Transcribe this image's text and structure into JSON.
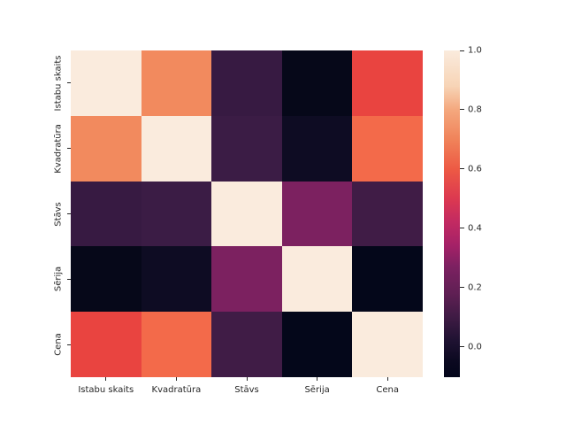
{
  "figure": {
    "background": "#ffffff",
    "text_color": "#262626"
  },
  "chart_data": {
    "type": "heatmap",
    "title": "",
    "xlabel": "",
    "ylabel": "",
    "grid": false,
    "legend_position": "right-colorbar",
    "colormap_name": "rocket",
    "categories": [
      "Istabu skaits",
      "Kvadratūra",
      "Stāvs",
      "Sērija",
      "Cena"
    ],
    "matrix": [
      [
        1.0,
        0.72,
        0.07,
        -0.08,
        0.55
      ],
      [
        0.72,
        1.0,
        0.09,
        -0.04,
        0.64
      ],
      [
        0.07,
        0.09,
        1.0,
        0.27,
        0.1
      ],
      [
        -0.08,
        -0.04,
        0.27,
        1.0,
        -0.1
      ],
      [
        0.55,
        0.64,
        0.1,
        -0.1,
        1.0
      ]
    ],
    "cell_colors": [
      [
        "#faebdd",
        "#f28a5e",
        "#371a42",
        "#060819",
        "#e94440"
      ],
      [
        "#f28a5e",
        "#faebdd",
        "#3b1c45",
        "#0e0c23",
        "#f36a4a"
      ],
      [
        "#371a42",
        "#3b1c45",
        "#faebdd",
        "#7c2160",
        "#401c46"
      ],
      [
        "#060819",
        "#0e0c23",
        "#7c2160",
        "#faebdd",
        "#04071a"
      ],
      [
        "#e94440",
        "#f36a4a",
        "#401c46",
        "#04071a",
        "#faebdd"
      ]
    ],
    "colorbar": {
      "vmin": -0.103,
      "vmax": 1.0,
      "tick_labels": [
        "1.0",
        "0.8",
        "0.6",
        "0.4",
        "0.2",
        "0.0"
      ],
      "tick_values": [
        1.0,
        0.8,
        0.6,
        0.4,
        0.2,
        0.0
      ],
      "gradient_stops": [
        {
          "value": 1.0,
          "color": "#faebdd"
        },
        {
          "value": 0.88,
          "color": "#f7d4b6"
        },
        {
          "value": 0.8,
          "color": "#f4a87e"
        },
        {
          "value": 0.7,
          "color": "#f0835a"
        },
        {
          "value": 0.6,
          "color": "#ed5a44"
        },
        {
          "value": 0.5,
          "color": "#dc3950"
        },
        {
          "value": 0.42,
          "color": "#c22a62"
        },
        {
          "value": 0.34,
          "color": "#a42167"
        },
        {
          "value": 0.27,
          "color": "#7c2161"
        },
        {
          "value": 0.18,
          "color": "#601f54"
        },
        {
          "value": 0.1,
          "color": "#3f1b44"
        },
        {
          "value": 0.02,
          "color": "#1f1232"
        },
        {
          "value": -0.05,
          "color": "#0b0920"
        },
        {
          "value": -0.103,
          "color": "#03051a"
        }
      ]
    }
  }
}
